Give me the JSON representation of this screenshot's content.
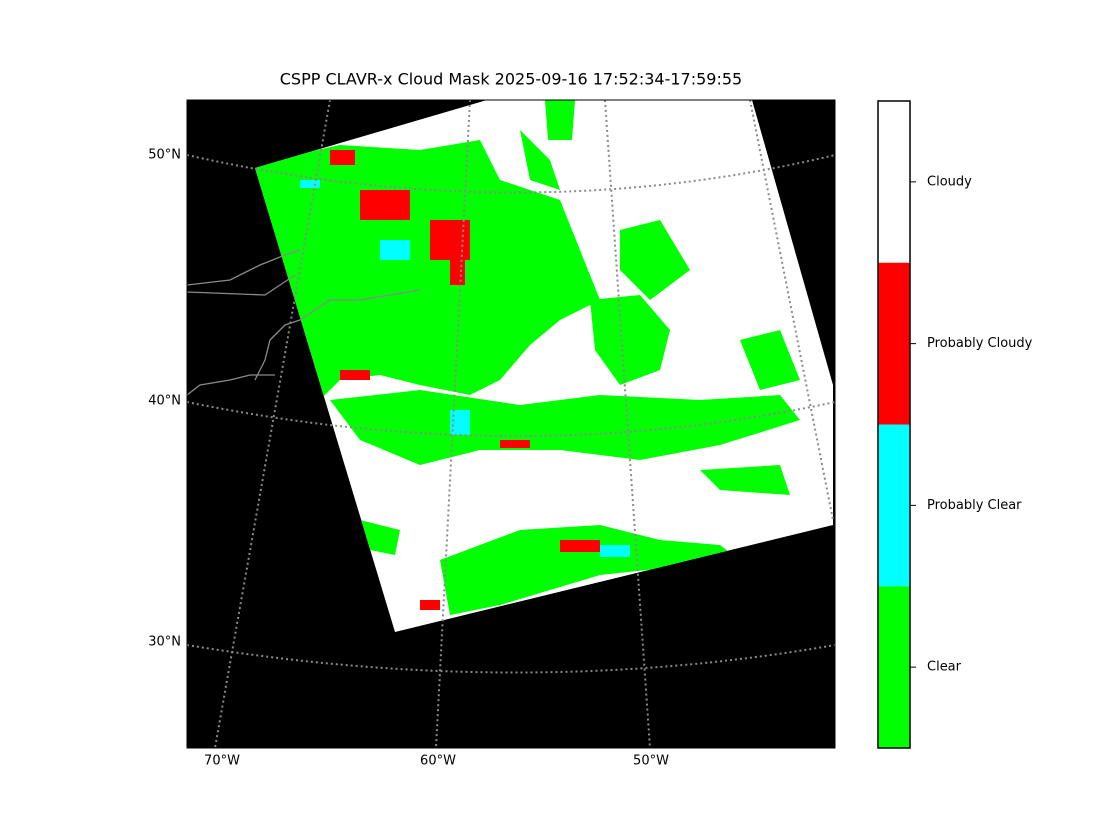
{
  "title": "CSPP CLAVR-x Cloud Mask 2025-09-16 17:52:34-17:59:55",
  "latitude_labels": [
    "50°N",
    "40°N",
    "30°N"
  ],
  "longitude_labels": [
    "70°W",
    "60°W",
    "50°W"
  ],
  "legend": {
    "classes": [
      {
        "label": "Cloudy",
        "color": "#ffffff"
      },
      {
        "label": "Probably Cloudy",
        "color": "#ff0000"
      },
      {
        "label": "Probably Clear",
        "color": "#00ffff"
      },
      {
        "label": "Clear",
        "color": "#00ff00"
      }
    ]
  }
}
